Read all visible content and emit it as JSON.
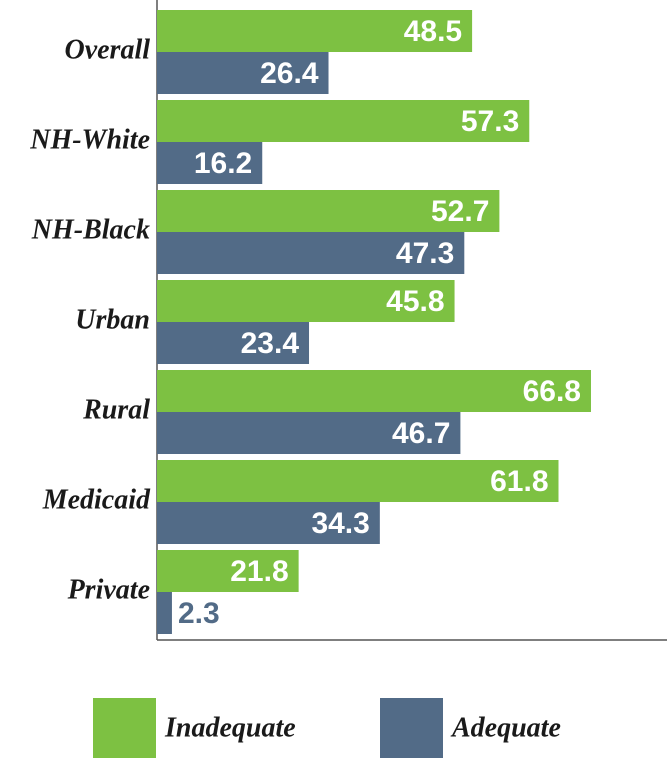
{
  "chart_data": {
    "type": "hbar",
    "categories": [
      "Overall",
      "NH-White",
      "NH-Black",
      "Urban",
      "Rural",
      "Medicaid",
      "Private"
    ],
    "series": [
      {
        "name": "Inadequate",
        "color": "#7dc142",
        "values": [
          48.5,
          57.3,
          52.7,
          45.8,
          66.8,
          61.8,
          21.8
        ]
      },
      {
        "name": "Adequate",
        "color": "#526b87",
        "values": [
          26.4,
          16.2,
          47.3,
          23.4,
          46.7,
          34.3,
          2.3
        ]
      }
    ],
    "xlim": [
      0,
      78.5
    ]
  }
}
